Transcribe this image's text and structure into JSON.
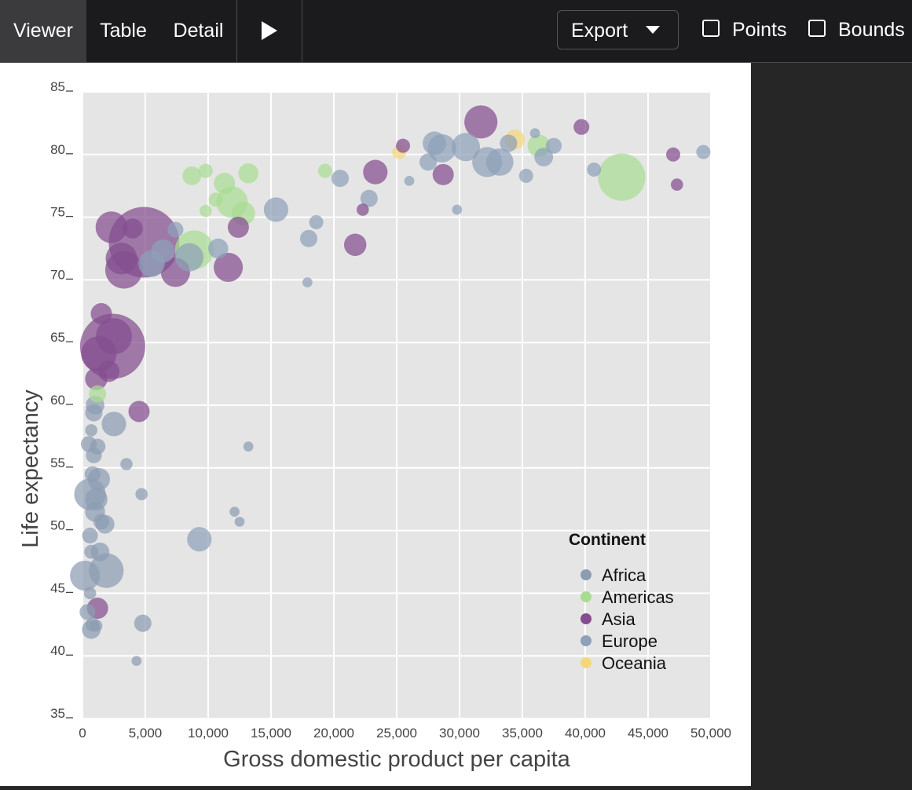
{
  "toolbar": {
    "tabs": [
      {
        "label": "Viewer",
        "active": true
      },
      {
        "label": "Table",
        "active": false
      },
      {
        "label": "Detail",
        "active": false
      }
    ],
    "play_icon": "play-icon",
    "export_label": "Export",
    "export_icon": "chevron-down-icon",
    "checkboxes": [
      {
        "label": "Points",
        "checked": false
      },
      {
        "label": "Bounds",
        "checked": false
      }
    ]
  },
  "colors": {
    "Africa": "#8c9cb1",
    "Americas": "#a9dc93",
    "Asia": "#844d8f",
    "Europe": "#8ea1b9",
    "Oceania": "#f5d77a",
    "plot_bg": "#e5e5e5",
    "grid": "#ffffff"
  },
  "chart_data": {
    "type": "scatter",
    "xlabel": "Gross domestic product per capita",
    "ylabel": "Life expectancy",
    "xlim": [
      0,
      50000
    ],
    "ylim": [
      35,
      85
    ],
    "x_ticks": [
      0,
      5000,
      10000,
      15000,
      20000,
      25000,
      30000,
      35000,
      40000,
      45000,
      50000
    ],
    "x_tick_labels": [
      "0",
      "5,000",
      "10,000",
      "15,000",
      "20,000",
      "25,000",
      "30,000",
      "35,000",
      "40,000",
      "45,000",
      "50,000"
    ],
    "y_ticks": [
      35,
      40,
      45,
      50,
      55,
      60,
      65,
      70,
      75,
      80,
      85
    ],
    "y_tick_labels": [
      "35",
      "40",
      "45",
      "50",
      "55",
      "60",
      "65",
      "70",
      "75",
      "80",
      "85"
    ],
    "grid": true,
    "size_encodes": "population (relative)",
    "legend": {
      "title": "Continent",
      "placement": "bottom-right",
      "entries": [
        "Africa",
        "Americas",
        "Asia",
        "Europe",
        "Oceania"
      ]
    },
    "points": [
      {
        "continent": "Asia",
        "x": 4900,
        "y": 73.0,
        "size": 1.0
      },
      {
        "continent": "Asia",
        "x": 2400,
        "y": 64.7,
        "size": 0.85
      },
      {
        "continent": "Americas",
        "x": 42900,
        "y": 78.2,
        "size": 0.45
      },
      {
        "continent": "Asia",
        "x": 3300,
        "y": 70.8,
        "size": 0.28
      },
      {
        "continent": "Americas",
        "x": 8900,
        "y": 72.4,
        "size": 0.3
      },
      {
        "continent": "Asia",
        "x": 2500,
        "y": 65.5,
        "size": 0.26
      },
      {
        "continent": "Asia",
        "x": 1300,
        "y": 64.1,
        "size": 0.25
      },
      {
        "continent": "Asia",
        "x": 31700,
        "y": 82.6,
        "size": 0.22
      },
      {
        "continent": "Africa",
        "x": 1900,
        "y": 46.8,
        "size": 0.24
      },
      {
        "continent": "Africa",
        "x": 600,
        "y": 52.9,
        "size": 0.2
      },
      {
        "continent": "Africa",
        "x": 200,
        "y": 46.4,
        "size": 0.18
      },
      {
        "continent": "Asia",
        "x": 2300,
        "y": 74.2,
        "size": 0.2
      },
      {
        "continent": "Asia",
        "x": 3100,
        "y": 71.7,
        "size": 0.2
      },
      {
        "continent": "Americas",
        "x": 11900,
        "y": 76.2,
        "size": 0.2
      },
      {
        "continent": "Asia",
        "x": 7400,
        "y": 70.6,
        "size": 0.17
      },
      {
        "continent": "Asia",
        "x": 11600,
        "y": 71.0,
        "size": 0.17
      },
      {
        "continent": "Europe",
        "x": 32200,
        "y": 79.4,
        "size": 0.18
      },
      {
        "continent": "Europe",
        "x": 30500,
        "y": 80.6,
        "size": 0.16
      },
      {
        "continent": "Europe",
        "x": 28600,
        "y": 80.5,
        "size": 0.16
      },
      {
        "continent": "Europe",
        "x": 33200,
        "y": 79.4,
        "size": 0.15
      },
      {
        "continent": "Europe",
        "x": 8500,
        "y": 71.8,
        "size": 0.16
      },
      {
        "continent": "Europe",
        "x": 5500,
        "y": 71.3,
        "size": 0.14
      },
      {
        "continent": "Europe",
        "x": 15400,
        "y": 75.6,
        "size": 0.12
      },
      {
        "continent": "Europe",
        "x": 9300,
        "y": 49.3,
        "size": 0.12
      },
      {
        "continent": "Africa",
        "x": 2500,
        "y": 58.5,
        "size": 0.12
      },
      {
        "continent": "Africa",
        "x": 1100,
        "y": 52.5,
        "size": 0.1
      },
      {
        "continent": "Africa",
        "x": 1300,
        "y": 54.1,
        "size": 0.1
      },
      {
        "continent": "Americas",
        "x": 12800,
        "y": 75.3,
        "size": 0.11
      },
      {
        "continent": "Americas",
        "x": 36300,
        "y": 80.7,
        "size": 0.1
      },
      {
        "continent": "Asia",
        "x": 23300,
        "y": 78.6,
        "size": 0.12
      },
      {
        "continent": "Asia",
        "x": 21700,
        "y": 72.8,
        "size": 0.1
      },
      {
        "continent": "Asia",
        "x": 1100,
        "y": 62.1,
        "size": 0.1
      },
      {
        "continent": "Asia",
        "x": 4500,
        "y": 59.5,
        "size": 0.09
      },
      {
        "continent": "Asia",
        "x": 1500,
        "y": 67.3,
        "size": 0.09
      },
      {
        "continent": "Asia",
        "x": 28700,
        "y": 78.4,
        "size": 0.09
      },
      {
        "continent": "Asia",
        "x": 12400,
        "y": 74.2,
        "size": 0.09
      },
      {
        "continent": "Asia",
        "x": 1200,
        "y": 43.8,
        "size": 0.09
      },
      {
        "continent": "Asia",
        "x": 4000,
        "y": 74.1,
        "size": 0.08
      },
      {
        "continent": "Asia",
        "x": 2100,
        "y": 62.7,
        "size": 0.09
      },
      {
        "continent": "Americas",
        "x": 11300,
        "y": 77.7,
        "size": 0.09
      },
      {
        "continent": "Americas",
        "x": 13200,
        "y": 78.5,
        "size": 0.08
      },
      {
        "continent": "Americas",
        "x": 8700,
        "y": 78.3,
        "size": 0.07
      },
      {
        "continent": "Americas",
        "x": 1200,
        "y": 60.9,
        "size": 0.06
      },
      {
        "continent": "Europe",
        "x": 6400,
        "y": 72.3,
        "size": 0.11
      },
      {
        "continent": "Europe",
        "x": 10800,
        "y": 72.5,
        "size": 0.08
      },
      {
        "continent": "Europe",
        "x": 28000,
        "y": 80.9,
        "size": 0.11
      },
      {
        "continent": "Europe",
        "x": 36700,
        "y": 79.8,
        "size": 0.07
      },
      {
        "continent": "Europe",
        "x": 33900,
        "y": 80.9,
        "size": 0.06
      },
      {
        "continent": "Europe",
        "x": 37500,
        "y": 80.7,
        "size": 0.05
      },
      {
        "continent": "Europe",
        "x": 22800,
        "y": 76.5,
        "size": 0.06
      },
      {
        "continent": "Europe",
        "x": 20500,
        "y": 78.1,
        "size": 0.06
      },
      {
        "continent": "Europe",
        "x": 27500,
        "y": 79.4,
        "size": 0.06
      },
      {
        "continent": "Europe",
        "x": 18000,
        "y": 73.3,
        "size": 0.06
      },
      {
        "continent": "Europe",
        "x": 7400,
        "y": 74.0,
        "size": 0.05
      },
      {
        "continent": "Oceania",
        "x": 34400,
        "y": 81.2,
        "size": 0.08
      },
      {
        "continent": "Oceania",
        "x": 25200,
        "y": 80.2,
        "size": 0.04
      },
      {
        "continent": "Africa",
        "x": 1400,
        "y": 48.3,
        "size": 0.07
      },
      {
        "continent": "Africa",
        "x": 1000,
        "y": 51.5,
        "size": 0.08
      },
      {
        "continent": "Africa",
        "x": 1800,
        "y": 50.5,
        "size": 0.07
      },
      {
        "continent": "Africa",
        "x": 4800,
        "y": 42.6,
        "size": 0.06
      },
      {
        "continent": "Africa",
        "x": 700,
        "y": 42.1,
        "size": 0.07
      },
      {
        "continent": "Africa",
        "x": 600,
        "y": 49.6,
        "size": 0.05
      },
      {
        "continent": "Africa",
        "x": 500,
        "y": 56.9,
        "size": 0.05
      },
      {
        "continent": "Africa",
        "x": 900,
        "y": 56.0,
        "size": 0.05
      },
      {
        "continent": "Africa",
        "x": 1000,
        "y": 60.0,
        "size": 0.07
      },
      {
        "continent": "Africa",
        "x": 900,
        "y": 59.4,
        "size": 0.06
      },
      {
        "continent": "Africa",
        "x": 1200,
        "y": 56.7,
        "size": 0.05
      },
      {
        "continent": "Africa",
        "x": 1500,
        "y": 50.7,
        "size": 0.05
      },
      {
        "continent": "Africa",
        "x": 400,
        "y": 43.5,
        "size": 0.05
      },
      {
        "continent": "Africa",
        "x": 800,
        "y": 54.5,
        "size": 0.05
      },
      {
        "continent": "Africa",
        "x": 700,
        "y": 48.3,
        "size": 0.04
      },
      {
        "continent": "Africa",
        "x": 800,
        "y": 42.5,
        "size": 0.04
      },
      {
        "continent": "Africa",
        "x": 3500,
        "y": 55.3,
        "size": 0.03
      },
      {
        "continent": "Africa",
        "x": 4700,
        "y": 52.9,
        "size": 0.03
      },
      {
        "continent": "Africa",
        "x": 600,
        "y": 45.0,
        "size": 0.03
      },
      {
        "continent": "Africa",
        "x": 1100,
        "y": 42.4,
        "size": 0.03
      },
      {
        "continent": "Africa",
        "x": 700,
        "y": 58.0,
        "size": 0.03
      },
      {
        "continent": "Africa",
        "x": 4300,
        "y": 39.6,
        "size": 0.02
      },
      {
        "continent": "Africa",
        "x": 12100,
        "y": 51.5,
        "size": 0.02
      },
      {
        "continent": "Africa",
        "x": 13200,
        "y": 56.7,
        "size": 0.02
      },
      {
        "continent": "Africa",
        "x": 12500,
        "y": 50.7,
        "size": 0.02
      },
      {
        "continent": "Asia",
        "x": 39700,
        "y": 82.2,
        "size": 0.05
      },
      {
        "continent": "Asia",
        "x": 25500,
        "y": 80.7,
        "size": 0.04
      },
      {
        "continent": "Asia",
        "x": 47000,
        "y": 80.0,
        "size": 0.04
      },
      {
        "continent": "Asia",
        "x": 47300,
        "y": 77.6,
        "size": 0.03
      },
      {
        "continent": "Asia",
        "x": 22300,
        "y": 75.6,
        "size": 0.03
      },
      {
        "continent": "Europe",
        "x": 49400,
        "y": 80.2,
        "size": 0.04
      },
      {
        "continent": "Europe",
        "x": 40700,
        "y": 78.8,
        "size": 0.04
      },
      {
        "continent": "Europe",
        "x": 35300,
        "y": 78.3,
        "size": 0.04
      },
      {
        "continent": "Europe",
        "x": 18600,
        "y": 74.6,
        "size": 0.04
      },
      {
        "continent": "Europe",
        "x": 17900,
        "y": 69.8,
        "size": 0.02
      },
      {
        "continent": "Europe",
        "x": 29800,
        "y": 75.6,
        "size": 0.02
      },
      {
        "continent": "Europe",
        "x": 26000,
        "y": 77.9,
        "size": 0.02
      },
      {
        "continent": "Europe",
        "x": 36000,
        "y": 81.7,
        "size": 0.02
      },
      {
        "continent": "Americas",
        "x": 19300,
        "y": 78.7,
        "size": 0.04
      },
      {
        "continent": "Americas",
        "x": 9800,
        "y": 78.7,
        "size": 0.04
      },
      {
        "continent": "Americas",
        "x": 10600,
        "y": 76.4,
        "size": 0.04
      },
      {
        "continent": "Americas",
        "x": 9800,
        "y": 75.5,
        "size": 0.03
      }
    ]
  }
}
